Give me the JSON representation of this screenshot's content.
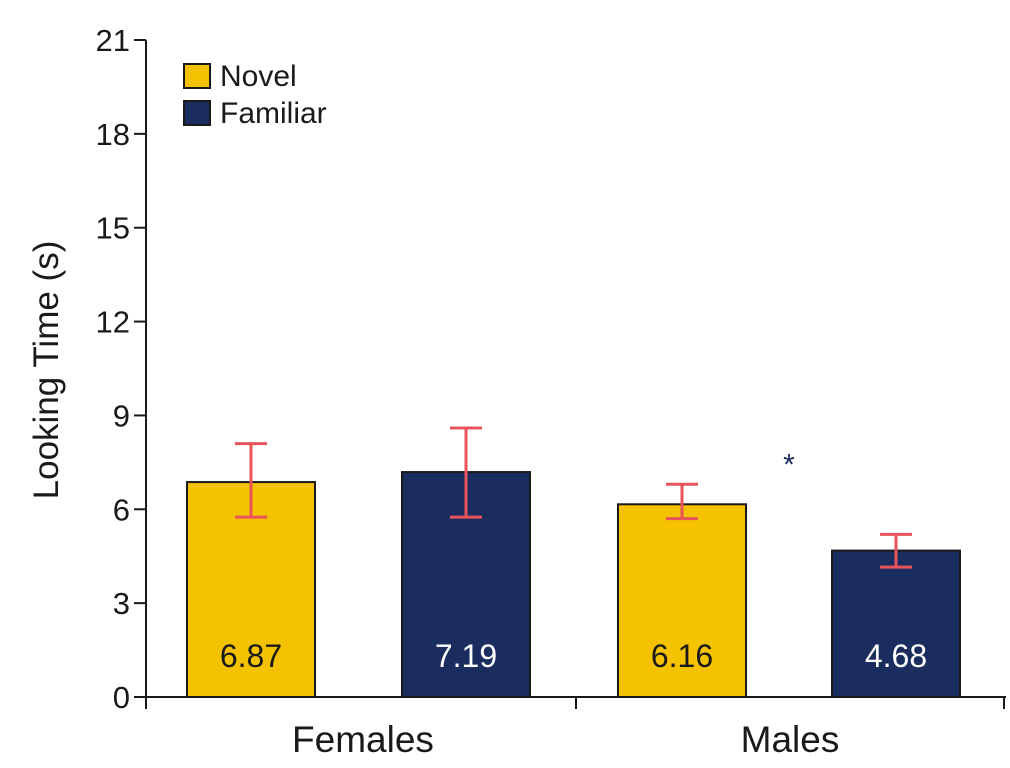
{
  "chart_data": {
    "type": "bar",
    "title": "",
    "xlabel": "",
    "ylabel": "Looking Time (s)",
    "ylim": [
      0,
      21
    ],
    "yticks": [
      0,
      3,
      6,
      9,
      12,
      15,
      18,
      21
    ],
    "categories": [
      "Females",
      "Males"
    ],
    "grid": false,
    "legend_position": "top-left",
    "series": [
      {
        "name": "Novel",
        "color": "#F5C200",
        "label_color": "#1a1a1a",
        "values": [
          6.87,
          6.16
        ],
        "error_low": [
          5.75,
          5.7
        ],
        "error_high": [
          8.1,
          6.8
        ],
        "labels": [
          "6.87",
          "6.16"
        ]
      },
      {
        "name": "Familiar",
        "color": "#1B2D5E",
        "label_color": "#ffffff",
        "values": [
          7.19,
          4.68
        ],
        "error_low": [
          5.75,
          4.15
        ],
        "error_high": [
          8.6,
          5.2
        ],
        "labels": [
          "7.19",
          "4.68"
        ]
      }
    ],
    "error_bar_color": "#E8545A",
    "annotations": [
      {
        "text": "*",
        "category": "Males",
        "y": 7.5,
        "color": "#1B2D5E"
      }
    ]
  }
}
